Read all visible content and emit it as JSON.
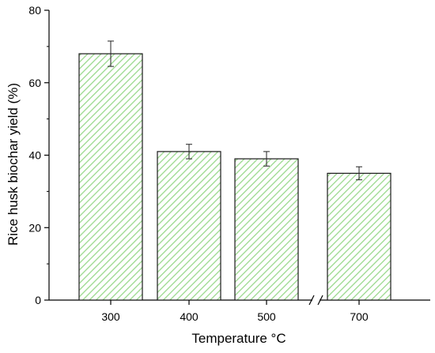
{
  "chart_data": {
    "type": "bar",
    "title": "",
    "xlabel": "Temperature °C",
    "ylabel": "Rice husk biochar yield (%)",
    "categories": [
      "300",
      "400",
      "500",
      "700"
    ],
    "values": [
      68,
      41,
      39,
      35
    ],
    "error": [
      3.5,
      2.0,
      2.0,
      1.8
    ],
    "ylim": [
      0,
      80
    ],
    "yticks": [
      0,
      20,
      40,
      60,
      80
    ],
    "ytick_labels": [
      "0",
      "20",
      "40",
      "60",
      "80"
    ],
    "axis_break": "between 500 and 700 on x-axis",
    "grid": false,
    "legend": "none",
    "colors": {
      "bar_fill": "#ffffff",
      "bar_hatch": "#9ad98d",
      "bar_edge": "#1a1a1a",
      "axis": "#000000"
    },
    "fill_pattern": "diagonal-hatch"
  }
}
